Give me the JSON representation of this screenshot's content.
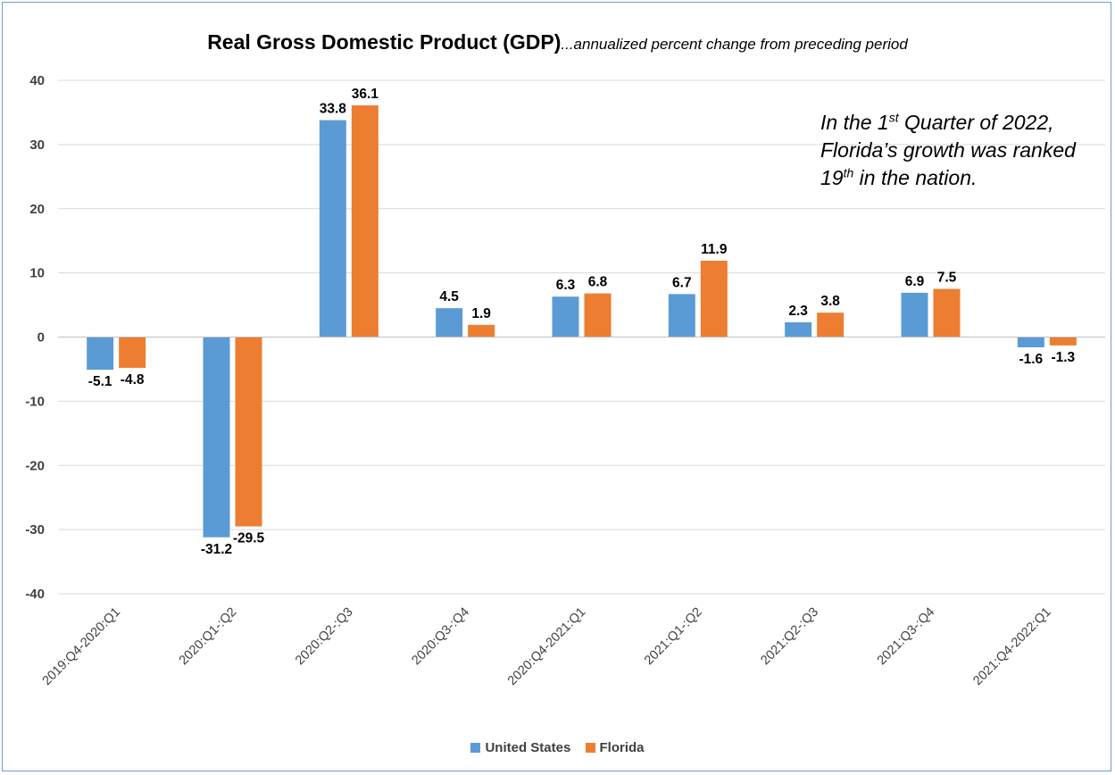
{
  "chart_data": {
    "type": "bar",
    "title": "Real Gross Domestic Product (GDP)",
    "subtitle": "...annualized percent change from preceding period",
    "categories": [
      "2019:Q4-2020:Q1",
      "2020:Q1-:Q2",
      "2020:Q2-:Q3",
      "2020:Q3-:Q4",
      "2020:Q4-2021:Q1",
      "2021:Q1-:Q2",
      "2021:Q2-:Q3",
      "2021:Q3-:Q4",
      "2021:Q4-2022:Q1"
    ],
    "series": [
      {
        "name": "United States",
        "color": "#5b9bd5",
        "values": [
          -5.1,
          -31.2,
          33.8,
          4.5,
          6.3,
          6.7,
          2.3,
          6.9,
          -1.6
        ]
      },
      {
        "name": "Florida",
        "color": "#ed7d31",
        "values": [
          -4.8,
          -29.5,
          36.1,
          1.9,
          6.8,
          11.9,
          3.8,
          7.5,
          -1.3
        ]
      }
    ],
    "ylim": [
      -40,
      40
    ],
    "yticks": [
      40,
      30,
      20,
      10,
      0,
      -10,
      -20,
      -30,
      -40
    ],
    "grid": true,
    "legend": "bottom-center",
    "annotation": {
      "line1": [
        "In the 1",
        "st",
        " Quarter of 2022,"
      ],
      "line2": "Florida’s growth was ranked",
      "line3": [
        "19",
        "th",
        " in the nation."
      ]
    },
    "xlabel": "",
    "ylabel": ""
  }
}
